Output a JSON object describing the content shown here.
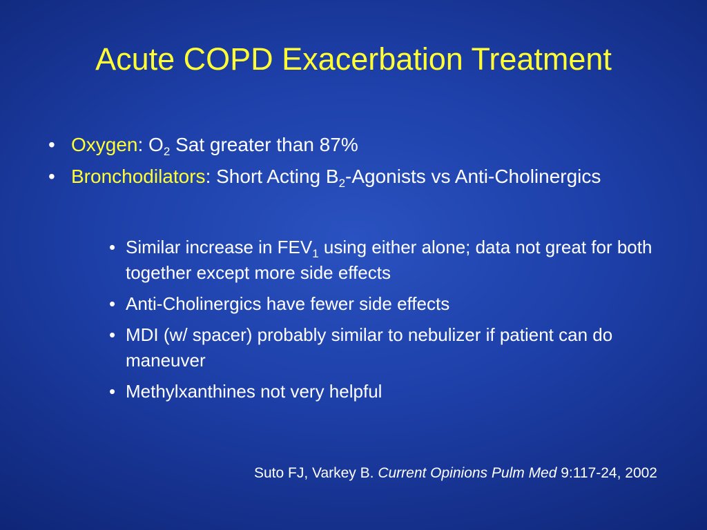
{
  "title": "Acute COPD Exacerbation Treatment",
  "bullet_char": "•",
  "level1": [
    {
      "label": "Oxygen",
      "parts": [
        ": O",
        "2",
        " Sat  greater than 87%"
      ]
    },
    {
      "label": "Bronchodilators",
      "parts": [
        ": Short Acting B",
        "2",
        "-Agonists vs Anti-Cholinergics"
      ]
    }
  ],
  "level2": [
    {
      "parts": [
        "Similar increase in FEV",
        "1",
        " using either alone; data not great for both together except more side effects"
      ]
    },
    {
      "text": "Anti-Cholinergics have fewer side effects"
    },
    {
      "text": "MDI (w/ spacer) probably similar to nebulizer if patient can do maneuver"
    },
    {
      "text": "Methylxanthines not very helpful"
    }
  ],
  "citation": {
    "authors": "Suto FJ, Varkey B. ",
    "journal": "Current Opinions Pulm Med",
    "details": " 9:117-24, 2002"
  },
  "colors": {
    "title": "#ffff33",
    "highlight": "#ffff33",
    "body_text": "#ffffff",
    "background_center": "#2a52c0",
    "background_edge": "#0f2677"
  }
}
